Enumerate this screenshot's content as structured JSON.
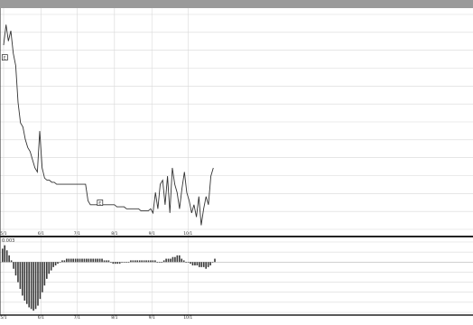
{
  "chart_data": [
    {
      "type": "line",
      "x_labels": [
        "5/1",
        "6/1",
        "7/1",
        "8/1",
        "9/1",
        "10/1"
      ],
      "x_label_positions_days": [
        0,
        31,
        61,
        92,
        123,
        153
      ],
      "points_days": [
        0,
        2,
        4,
        6,
        8,
        10,
        12,
        14,
        16,
        18,
        20,
        22,
        24,
        26,
        28,
        30,
        32,
        34,
        36,
        38,
        40,
        42,
        44,
        46,
        48,
        50,
        52,
        54,
        56,
        58,
        60,
        62,
        64,
        66,
        68,
        70,
        72,
        74,
        76,
        78,
        80,
        82,
        84,
        86,
        88,
        90,
        92,
        94,
        96,
        98,
        100,
        102,
        104,
        106,
        108,
        110,
        112,
        114,
        116,
        118,
        120,
        122,
        124,
        126,
        128,
        130,
        132,
        134,
        136,
        138,
        140,
        142,
        144,
        146,
        148,
        150,
        152,
        154,
        156,
        158,
        160,
        162,
        164,
        166,
        168,
        170,
        172,
        174
      ],
      "points_values": [
        90,
        100,
        92,
        97,
        86,
        80,
        62,
        52,
        50,
        44,
        40,
        38,
        34,
        30,
        28,
        48,
        30,
        25,
        24,
        24,
        23,
        23,
        22,
        22,
        22,
        22,
        22,
        22,
        22,
        22,
        22,
        22,
        22,
        22,
        22,
        14,
        12,
        12,
        12,
        12,
        12,
        12,
        12,
        12,
        12,
        12,
        12,
        11,
        11,
        11,
        11,
        10,
        10,
        10,
        10,
        10,
        10,
        9,
        9,
        9,
        9,
        10,
        8,
        18,
        10,
        22,
        24,
        12,
        26,
        8,
        30,
        22,
        18,
        10,
        20,
        28,
        18,
        14,
        8,
        12,
        6,
        16,
        2,
        10,
        16,
        12,
        26,
        30
      ],
      "ylim": [
        0,
        105
      ],
      "markers": [
        {
          "day": 1,
          "value": 84,
          "label": "E"
        },
        {
          "day": 80,
          "value": 13,
          "label": "E"
        }
      ]
    },
    {
      "type": "bar",
      "label": "0.003",
      "x_labels": [
        "5/1",
        "6/1",
        "7/1",
        "8/1",
        "9/1",
        "10/1"
      ],
      "values": [
        8,
        10,
        7,
        4,
        1,
        -4,
        -8,
        -12,
        -16,
        -20,
        -23,
        -25,
        -27,
        -28,
        -29,
        -28,
        -26,
        -22,
        -18,
        -14,
        -10,
        -7,
        -5,
        -3,
        -2,
        -1,
        0,
        1,
        1,
        2,
        2,
        2,
        2,
        2,
        2,
        2,
        2,
        2,
        2,
        2,
        2,
        2,
        2,
        2,
        2,
        2,
        1,
        1,
        1,
        0,
        -1,
        -1,
        -1,
        -1,
        0,
        0,
        0,
        0,
        1,
        1,
        1,
        1,
        1,
        1,
        1,
        1,
        1,
        1,
        1,
        1,
        0,
        0,
        0,
        1,
        2,
        2,
        2,
        3,
        3,
        4,
        4,
        2,
        1,
        0,
        0,
        -1,
        -2,
        -2,
        -2,
        -3,
        -3,
        -3,
        -4,
        -3,
        -2,
        0,
        2
      ],
      "ylim": [
        -30,
        12
      ]
    }
  ]
}
